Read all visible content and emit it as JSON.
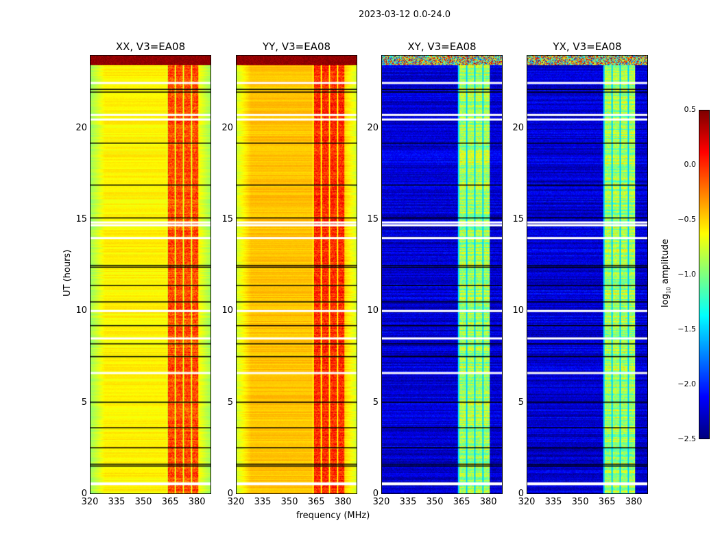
{
  "chart_data": {
    "type": "heatmap",
    "title": "2023-03-12 0.0-24.0",
    "xlabel": "frequency (MHz)",
    "ylabel": "UT (hours)",
    "xlim": [
      320,
      388
    ],
    "ylim": [
      0,
      24
    ],
    "xticks": [
      "320",
      "335",
      "350",
      "365",
      "380"
    ],
    "yticks": [
      "0",
      "5",
      "10",
      "15",
      "20"
    ],
    "panels": [
      {
        "title": "XX, V3=EA08",
        "base": -0.6,
        "band": -0.1
      },
      {
        "title": "YY, V3=EA08",
        "base": -0.45,
        "band": 0.0
      },
      {
        "title": "XY, V3=EA08",
        "base": -2.25,
        "band": -0.9
      },
      {
        "title": "YX, V3=EA08",
        "base": -2.25,
        "band": -0.9
      }
    ],
    "rfi_band_mhz": [
      363,
      381
    ],
    "flagged_white_hours": [
      0.5,
      0.55,
      6.6,
      8.5,
      10.0,
      14.0,
      14.7,
      14.85,
      20.5,
      20.75,
      22.5
    ],
    "flagged_black_hours": [
      1.5,
      1.6,
      2.5,
      3.6,
      5.0,
      7.5,
      8.2,
      9.2,
      10.5,
      11.4,
      12.4,
      12.5,
      15.1,
      16.9,
      19.2,
      22.0,
      22.15
    ],
    "colorbar": {
      "label": "log10 amplitude",
      "label_main": "log",
      "label_sub": "10",
      "label_rest": " amplitude",
      "range": [
        -2.5,
        0.5
      ],
      "ticks": [
        "0.5",
        "0.0",
        "−0.5",
        "−1.0",
        "−1.5",
        "−2.0",
        "−2.5"
      ],
      "colormap": "jet"
    }
  }
}
